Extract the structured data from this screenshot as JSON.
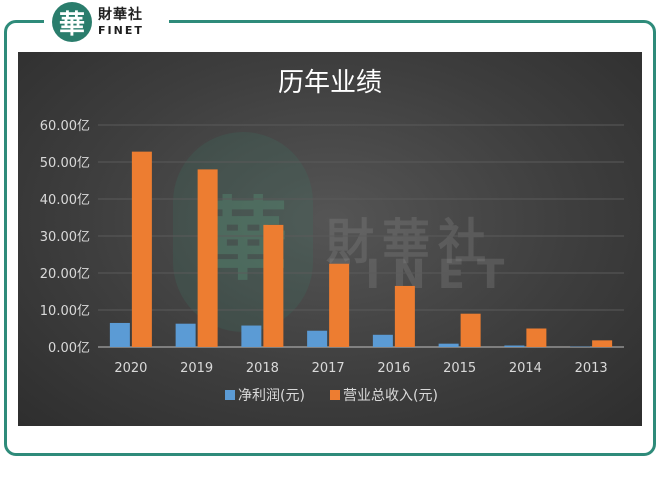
{
  "brand": {
    "mark": "華",
    "name_cn": "財華社",
    "name_en": "FINET"
  },
  "watermark": {
    "mark": "華",
    "cn": "財華社",
    "en": "FINET"
  },
  "colors": {
    "frame": "#2e8b7a",
    "net_profit": "#5b9bd5",
    "revenue": "#ed7d31"
  },
  "chart_data": {
    "type": "bar",
    "title": "历年业绩",
    "xlabel": "",
    "ylabel": "",
    "categories": [
      "2020",
      "2019",
      "2018",
      "2017",
      "2016",
      "2015",
      "2014",
      "2013"
    ],
    "series": [
      {
        "name": "净利润(元)",
        "values": [
          6.5,
          6.3,
          5.8,
          4.4,
          3.3,
          0.9,
          0.4,
          0.1
        ]
      },
      {
        "name": "营业总收入(元)",
        "values": [
          52.8,
          48.0,
          33.0,
          22.5,
          16.5,
          9.0,
          5.0,
          1.8
        ]
      }
    ],
    "ylim": [
      0,
      60
    ],
    "yticks": [
      "0.00亿",
      "10.00亿",
      "20.00亿",
      "30.00亿",
      "40.00亿",
      "50.00亿",
      "60.00亿"
    ],
    "grid": true,
    "legend_position": "bottom"
  }
}
